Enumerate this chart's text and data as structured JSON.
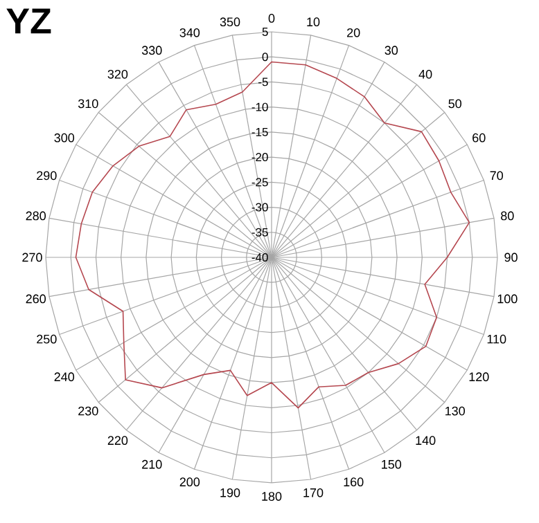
{
  "chart_data": {
    "type": "radar",
    "title": "YZ",
    "categories": [
      "0",
      "10",
      "20",
      "30",
      "40",
      "50",
      "60",
      "70",
      "80",
      "90",
      "100",
      "110",
      "120",
      "130",
      "140",
      "150",
      "160",
      "170",
      "180",
      "190",
      "200",
      "210",
      "220",
      "230",
      "240",
      "250",
      "260",
      "270",
      "280",
      "290",
      "300",
      "310",
      "320",
      "330",
      "340",
      "350"
    ],
    "series": [
      {
        "color": "#b5474f",
        "values": [
          -1,
          -1,
          -2,
          -3,
          -5,
          -1,
          -1.5,
          -2,
          0,
          -5,
          -9,
          -5,
          -4.5,
          -7,
          -10,
          -10.5,
          -12.5,
          -9.5,
          -15,
          -12,
          -16,
          -13,
          -6,
          -2,
          -6,
          -8.5,
          -3,
          -1,
          -1.5,
          -2,
          -3.5,
          -5.5,
          -8.5,
          -6,
          -7.5,
          -6.5
        ]
      }
    ],
    "ylim": [
      -40,
      5
    ],
    "yticks": [
      -40,
      -35,
      -30,
      -25,
      -20,
      -15,
      -10,
      -5,
      0,
      5
    ],
    "grid": true
  }
}
